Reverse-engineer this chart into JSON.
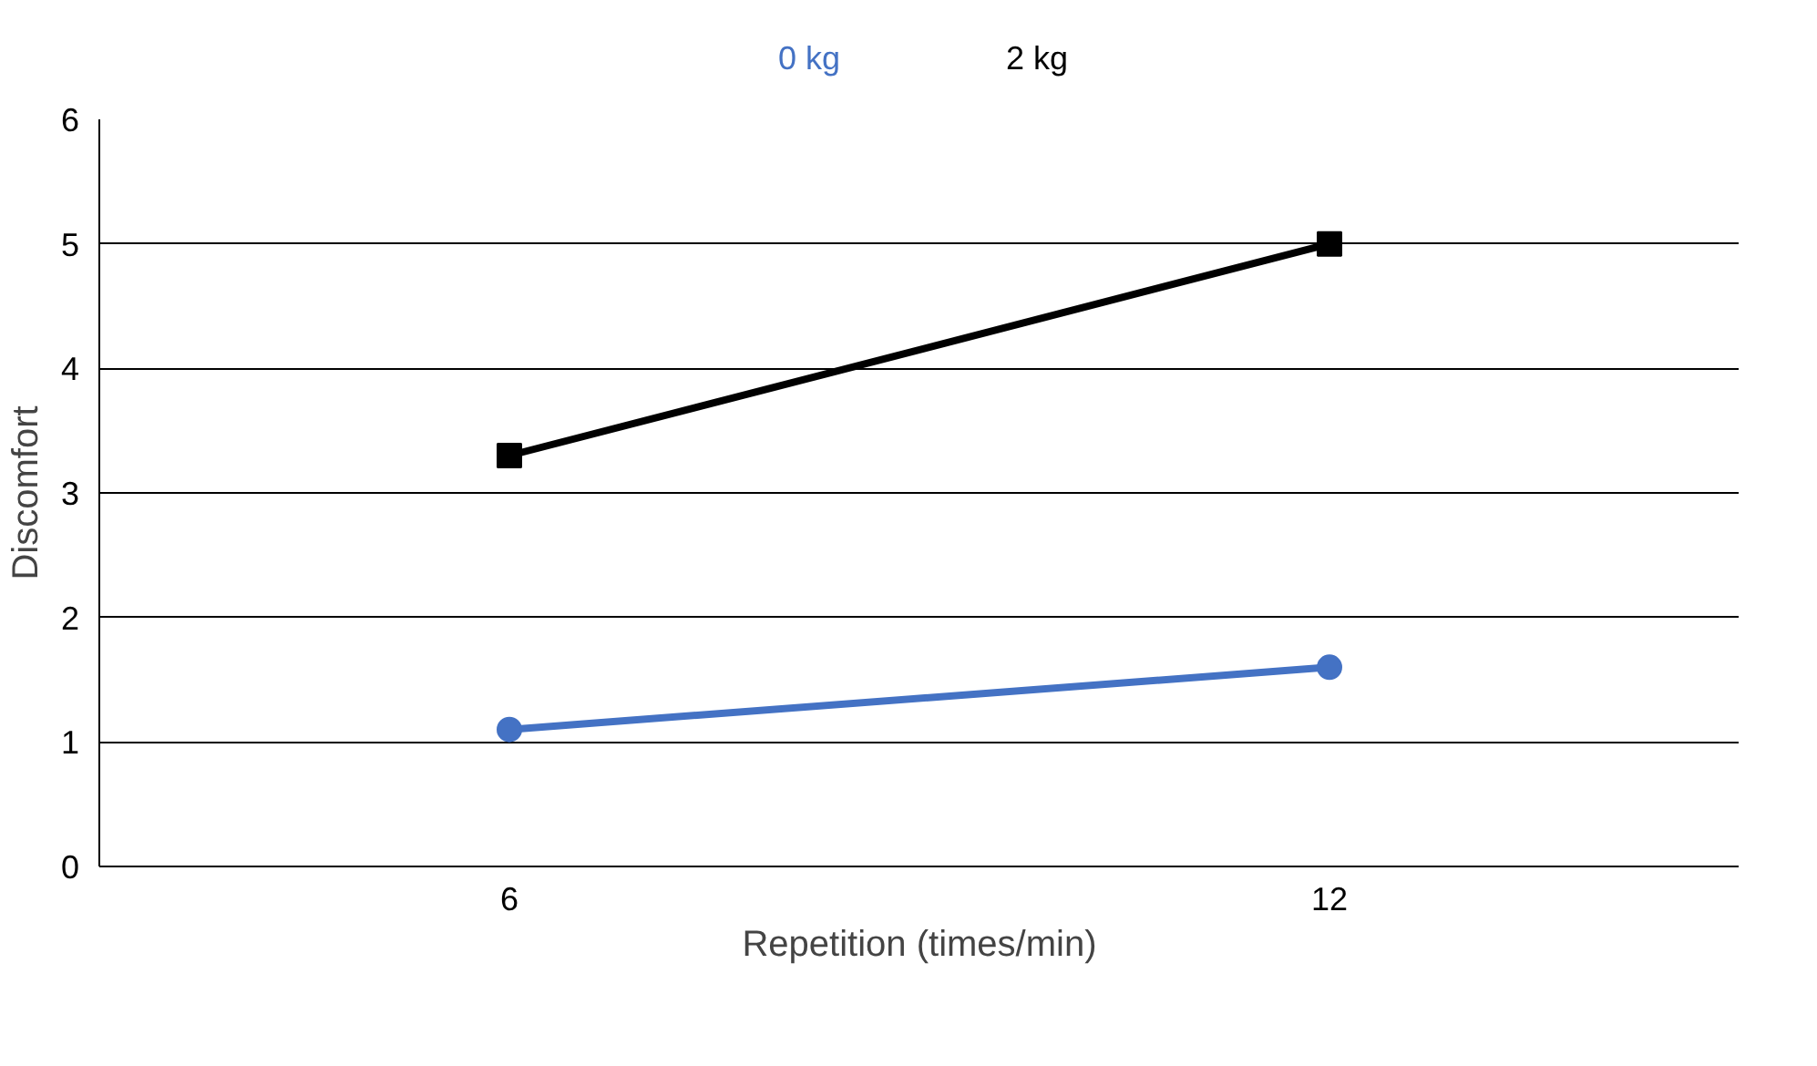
{
  "chart_data": {
    "type": "line",
    "xlabel": "Repetition (times/min)",
    "ylabel": "Discomfort",
    "categories": [
      "6",
      "12"
    ],
    "series": [
      {
        "name": "0 kg",
        "color": "#4472c4",
        "marker": "circle",
        "values": [
          1.1,
          1.6
        ]
      },
      {
        "name": "2 kg",
        "color": "#000000",
        "marker": "square",
        "values": [
          3.3,
          5.0
        ]
      }
    ],
    "ylim": [
      0,
      6
    ],
    "yticks": [
      0,
      1,
      2,
      3,
      4,
      5,
      6
    ],
    "grid": "y",
    "legend": "top",
    "line_style": "solid"
  }
}
